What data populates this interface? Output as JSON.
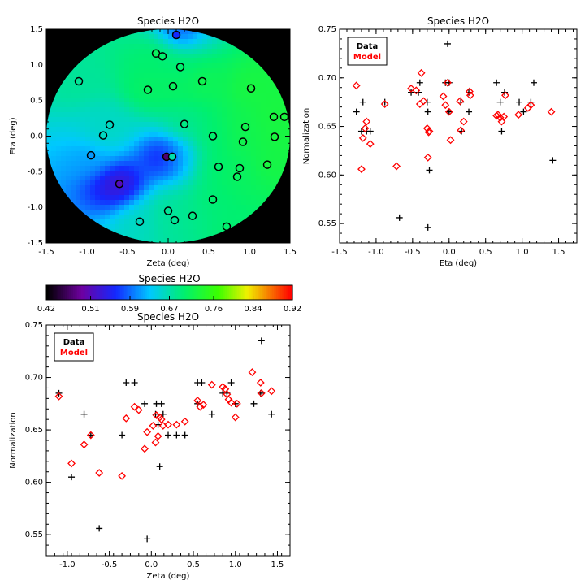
{
  "chart_data": [
    {
      "type": "heatmap",
      "title": "Species H2O",
      "xlabel": "Zeta (deg)",
      "ylabel": "Eta (deg)",
      "xlim": [
        -1.5,
        1.5
      ],
      "ylim": [
        -1.5,
        1.5
      ],
      "xticks": [
        "-1.5",
        "-1.0",
        "-0.5",
        "0.0",
        "0.5",
        "1.0",
        "1.5"
      ],
      "yticks": [
        "-1.5",
        "-1.0",
        "-0.5",
        "0.0",
        "0.5",
        "1.0",
        "1.5"
      ],
      "points": [
        {
          "x": 0.1,
          "y": 1.42,
          "v": 0.56
        },
        {
          "x": -0.15,
          "y": 1.16,
          "v": 0.71
        },
        {
          "x": -0.07,
          "y": 1.12,
          "v": 0.7
        },
        {
          "x": 0.15,
          "y": 0.97,
          "v": 0.7
        },
        {
          "x": -1.1,
          "y": 0.77,
          "v": 0.68
        },
        {
          "x": 0.42,
          "y": 0.77,
          "v": 0.72
        },
        {
          "x": 0.06,
          "y": 0.7,
          "v": 0.71
        },
        {
          "x": -0.25,
          "y": 0.65,
          "v": 0.71
        },
        {
          "x": 1.02,
          "y": 0.67,
          "v": 0.73
        },
        {
          "x": 1.3,
          "y": 0.27,
          "v": 0.73
        },
        {
          "x": 1.43,
          "y": 0.27,
          "v": 0.73
        },
        {
          "x": -0.72,
          "y": 0.16,
          "v": 0.66
        },
        {
          "x": 0.2,
          "y": 0.17,
          "v": 0.69
        },
        {
          "x": 0.95,
          "y": 0.13,
          "v": 0.72
        },
        {
          "x": -0.8,
          "y": 0.01,
          "v": 0.66
        },
        {
          "x": 0.55,
          "y": 0.0,
          "v": 0.7
        },
        {
          "x": 1.31,
          "y": -0.01,
          "v": 0.73
        },
        {
          "x": 0.92,
          "y": -0.08,
          "v": 0.72
        },
        {
          "x": -0.95,
          "y": -0.27,
          "v": 0.61
        },
        {
          "x": -0.02,
          "y": -0.29,
          "v": 0.47
        },
        {
          "x": 0.05,
          "y": -0.29,
          "v": 0.67
        },
        {
          "x": 0.62,
          "y": -0.43,
          "v": 0.7
        },
        {
          "x": 0.88,
          "y": -0.45,
          "v": 0.71
        },
        {
          "x": 1.22,
          "y": -0.4,
          "v": 0.73
        },
        {
          "x": 0.85,
          "y": -0.57,
          "v": 0.71
        },
        {
          "x": -0.6,
          "y": -0.67,
          "v": 0.51
        },
        {
          "x": 0.55,
          "y": -0.89,
          "v": 0.7
        },
        {
          "x": 0.0,
          "y": -1.05,
          "v": 0.68
        },
        {
          "x": 0.3,
          "y": -1.12,
          "v": 0.69
        },
        {
          "x": -0.35,
          "y": -1.2,
          "v": 0.66
        },
        {
          "x": 0.08,
          "y": -1.18,
          "v": 0.68
        },
        {
          "x": 0.72,
          "y": -1.27,
          "v": 0.7
        }
      ]
    },
    {
      "type": "scatter",
      "title": "Species H2O",
      "xlabel": "Eta (deg)",
      "ylabel": "Normalization",
      "xlim": [
        -1.5,
        1.75
      ],
      "ylim": [
        0.53,
        0.75
      ],
      "xticks": [
        "-1.5",
        "-1.0",
        "-0.5",
        "0.0",
        "0.5",
        "1.0",
        "1.5"
      ],
      "yticks": [
        "0.55",
        "0.60",
        "0.65",
        "0.70",
        "0.75"
      ],
      "legend": [
        "Data",
        "Model"
      ],
      "series": [
        {
          "name": "Data",
          "marker": "plus",
          "color": "#000000",
          "x": [
            -1.27,
            -1.2,
            -1.18,
            -1.13,
            -1.08,
            -0.88,
            -0.68,
            -0.52,
            -0.42,
            -0.4,
            -0.3,
            -0.29,
            -0.29,
            -0.27,
            -0.05,
            -0.02,
            0.0,
            0.0,
            0.16,
            0.17,
            0.27,
            0.27,
            0.65,
            0.7,
            0.72,
            0.76,
            0.96,
            1.02,
            1.12,
            1.16,
            1.42
          ],
          "y": [
            0.665,
            0.645,
            0.675,
            0.645,
            0.645,
            0.675,
            0.556,
            0.685,
            0.685,
            0.695,
            0.675,
            0.546,
            0.665,
            0.605,
            0.695,
            0.735,
            0.695,
            0.665,
            0.675,
            0.645,
            0.665,
            0.685,
            0.695,
            0.675,
            0.645,
            0.685,
            0.675,
            0.665,
            0.675,
            0.695,
            0.615
          ]
        },
        {
          "name": "Model",
          "marker": "diamond",
          "color": "#ff0000",
          "x": [
            -1.27,
            -1.2,
            -1.18,
            -1.15,
            -1.13,
            -1.08,
            -0.88,
            -0.72,
            -0.52,
            -0.45,
            -0.4,
            -0.38,
            -0.35,
            -0.3,
            -0.29,
            -0.28,
            -0.27,
            -0.08,
            -0.05,
            -0.02,
            0.0,
            0.02,
            0.15,
            0.16,
            0.2,
            0.28,
            0.29,
            0.65,
            0.67,
            0.7,
            0.72,
            0.75,
            0.77,
            0.95,
            1.08,
            1.12,
            1.4
          ],
          "y": [
            0.692,
            0.606,
            0.638,
            0.648,
            0.655,
            0.632,
            0.673,
            0.609,
            0.689,
            0.687,
            0.673,
            0.705,
            0.676,
            0.648,
            0.618,
            0.644,
            0.645,
            0.681,
            0.672,
            0.695,
            0.665,
            0.636,
            0.676,
            0.646,
            0.655,
            0.686,
            0.682,
            0.661,
            0.662,
            0.659,
            0.655,
            0.66,
            0.682,
            0.662,
            0.669,
            0.672,
            0.665
          ]
        }
      ]
    },
    {
      "type": "colorbar",
      "title": "Species H2O",
      "ticks": [
        "0.42",
        "0.51",
        "0.59",
        "0.67",
        "0.76",
        "0.84",
        "0.92"
      ],
      "range": [
        0.42,
        0.92
      ]
    },
    {
      "type": "scatter",
      "title": "Species H2O",
      "xlabel": "Zeta (deg)",
      "ylabel": "Normalization",
      "xlim": [
        -1.25,
        1.65
      ],
      "ylim": [
        0.53,
        0.75
      ],
      "xticks": [
        "-1.0",
        "-0.5",
        "0.0",
        "0.5",
        "1.0",
        "1.5"
      ],
      "yticks": [
        "0.55",
        "0.60",
        "0.65",
        "0.70",
        "0.75"
      ],
      "legend": [
        "Data",
        "Model"
      ],
      "series": [
        {
          "name": "Data",
          "marker": "plus",
          "color": "#000000",
          "x": [
            -1.1,
            -0.95,
            -0.8,
            -0.72,
            -0.62,
            -0.35,
            -0.3,
            -0.2,
            -0.08,
            -0.05,
            0.05,
            0.06,
            0.08,
            0.1,
            0.12,
            0.14,
            0.2,
            0.3,
            0.4,
            0.55,
            0.55,
            0.6,
            0.72,
            0.85,
            0.9,
            0.95,
            1.0,
            1.22,
            1.3,
            1.31,
            1.43
          ],
          "y": [
            0.685,
            0.605,
            0.665,
            0.645,
            0.556,
            0.645,
            0.695,
            0.695,
            0.675,
            0.546,
            0.665,
            0.675,
            0.655,
            0.615,
            0.675,
            0.665,
            0.645,
            0.645,
            0.645,
            0.675,
            0.695,
            0.695,
            0.665,
            0.685,
            0.685,
            0.695,
            0.675,
            0.675,
            0.685,
            0.735,
            0.665
          ]
        },
        {
          "name": "Model",
          "marker": "diamond",
          "color": "#ff0000",
          "x": [
            -1.1,
            -0.95,
            -0.8,
            -0.72,
            -0.62,
            -0.35,
            -0.3,
            -0.2,
            -0.15,
            -0.08,
            -0.05,
            0.02,
            0.05,
            0.06,
            0.08,
            0.1,
            0.12,
            0.14,
            0.2,
            0.3,
            0.4,
            0.55,
            0.58,
            0.62,
            0.72,
            0.85,
            0.88,
            0.9,
            0.92,
            0.95,
            1.0,
            1.02,
            1.2,
            1.3,
            1.31,
            1.43
          ],
          "y": [
            0.682,
            0.618,
            0.636,
            0.645,
            0.609,
            0.606,
            0.661,
            0.672,
            0.669,
            0.632,
            0.648,
            0.654,
            0.638,
            0.664,
            0.644,
            0.662,
            0.66,
            0.654,
            0.655,
            0.655,
            0.658,
            0.678,
            0.672,
            0.674,
            0.693,
            0.691,
            0.689,
            0.684,
            0.679,
            0.676,
            0.662,
            0.675,
            0.705,
            0.695,
            0.685,
            0.687
          ]
        }
      ]
    }
  ]
}
